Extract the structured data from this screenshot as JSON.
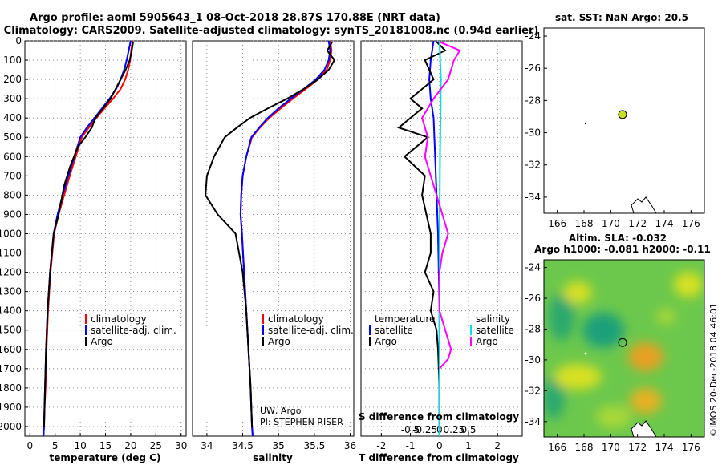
{
  "title_line1": "Argo profile: aoml 5905643_1 08-Oct-2018 28.87S 170.88E (NRT data)",
  "title_line2": "Climatology: CARS2009. Satellite-adjusted climatology: synTS_20181008.nc (0.94d earlier)",
  "sst_title": "sat. SST: NaN Argo: 20.5",
  "sla_title_1": "Altim. SLA: -0.032",
  "sla_title_2": "Argo h1000: -0.081 h2000: -0.11",
  "credit_1": "UW, Argo",
  "credit_2": "PI: STEPHEN RISER",
  "watermark": "©IMOS 20-Dec-2018 04:46:01",
  "colors": {
    "climatology": "#ff0000",
    "satellite": "#0000ff",
    "argo": "#000000",
    "sat_salinity": "#00e0e0",
    "argo_salinity": "#ff00ff",
    "argo_marker": "#c8e020"
  },
  "chart_data": [
    {
      "type": "line",
      "name": "temperature",
      "xlabel": "temperature (deg C)",
      "ylabel": "",
      "xlim": [
        -1,
        31
      ],
      "ylim": [
        2050,
        0
      ],
      "xticks": [
        "0",
        "5",
        "10",
        "15",
        "20",
        "25",
        "30"
      ],
      "yticks": [
        "0",
        "100",
        "200",
        "300",
        "400",
        "500",
        "600",
        "700",
        "800",
        "900",
        "1000",
        "1100",
        "1200",
        "1300",
        "1400",
        "1500",
        "1600",
        "1700",
        "1800",
        "1900",
        "2000"
      ],
      "legend": [
        "climatology",
        "satellite-adj. clim.",
        "Argo"
      ],
      "series": [
        {
          "name": "climatology",
          "color": "red",
          "x": [
            20.4,
            20.1,
            19.9,
            19.5,
            18.9,
            18.0,
            16.5,
            14.8,
            13.2,
            11.7,
            10.3,
            9.1,
            7.9,
            6.8,
            5.7,
            4.8,
            4.1,
            3.6,
            3.3,
            3.1,
            2.9,
            2.8,
            2.7
          ],
          "y": [
            0,
            50,
            100,
            150,
            200,
            250,
            300,
            350,
            400,
            450,
            500,
            600,
            700,
            800,
            900,
            1000,
            1200,
            1400,
            1600,
            1800,
            1900,
            2000,
            2050
          ]
        },
        {
          "name": "satellite-adj. clim.",
          "color": "blue",
          "x": [
            20.0,
            19.6,
            19.2,
            18.7,
            18.0,
            17.1,
            15.8,
            14.3,
            12.8,
            11.3,
            10.0,
            8.8,
            7.6,
            6.5,
            5.5,
            4.7,
            4.0,
            3.5,
            3.2,
            3.0,
            2.9,
            2.8,
            2.7
          ],
          "y": [
            0,
            50,
            100,
            150,
            200,
            250,
            300,
            350,
            400,
            450,
            500,
            600,
            700,
            800,
            900,
            1000,
            1200,
            1400,
            1600,
            1800,
            1900,
            2000,
            2050
          ]
        },
        {
          "name": "Argo",
          "color": "black",
          "x": [
            20.5,
            20.2,
            19.8,
            19.0,
            18.0,
            17.0,
            16.0,
            14.5,
            13.0,
            12.3,
            11.0,
            9.5,
            8.0,
            6.8,
            5.7,
            4.7,
            4.0,
            3.5,
            3.2,
            3.0,
            2.8
          ],
          "y": [
            5,
            50,
            100,
            150,
            200,
            250,
            300,
            350,
            400,
            450,
            500,
            550,
            650,
            750,
            900,
            1000,
            1200,
            1400,
            1600,
            1800,
            2000
          ]
        }
      ]
    },
    {
      "type": "line",
      "name": "salinity",
      "xlabel": "salinity",
      "ylabel": "",
      "xlim": [
        33.8,
        36.05
      ],
      "ylim": [
        2050,
        0
      ],
      "xticks": [
        "34",
        "34.5",
        "35",
        "35.5",
        "36"
      ],
      "legend": [
        "climatology",
        "satellite-adj. clim.",
        "Argo"
      ],
      "series": [
        {
          "name": "climatology",
          "color": "red",
          "x": [
            35.72,
            35.74,
            35.72,
            35.67,
            35.55,
            35.38,
            35.2,
            35.03,
            34.87,
            34.74,
            34.63,
            34.55,
            34.5,
            34.48,
            34.47,
            34.49,
            34.52,
            34.55,
            34.58,
            34.61,
            34.63,
            34.64
          ],
          "y": [
            0,
            50,
            100,
            150,
            200,
            250,
            300,
            350,
            400,
            450,
            500,
            600,
            700,
            800,
            900,
            1000,
            1200,
            1400,
            1600,
            1800,
            2000,
            2050
          ]
        },
        {
          "name": "satellite-adj. clim.",
          "color": "blue",
          "x": [
            35.7,
            35.72,
            35.7,
            35.64,
            35.52,
            35.35,
            35.17,
            35.0,
            34.85,
            34.73,
            34.62,
            34.55,
            34.5,
            34.48,
            34.47,
            34.49,
            34.52,
            34.55,
            34.58,
            34.61,
            34.63,
            34.64
          ],
          "y": [
            0,
            50,
            100,
            150,
            200,
            250,
            300,
            350,
            400,
            450,
            500,
            600,
            700,
            800,
            900,
            1000,
            1200,
            1400,
            1600,
            1800,
            2000,
            2050
          ]
        },
        {
          "name": "Argo",
          "color": "black",
          "x": [
            35.75,
            35.68,
            35.78,
            35.7,
            35.55,
            35.35,
            35.12,
            34.85,
            34.6,
            34.42,
            34.25,
            34.1,
            34.0,
            33.98,
            34.15,
            34.4,
            34.5,
            34.55,
            34.58,
            34.61,
            34.63
          ],
          "y": [
            5,
            50,
            100,
            150,
            200,
            250,
            300,
            350,
            400,
            450,
            500,
            600,
            700,
            800,
            900,
            1000,
            1200,
            1400,
            1600,
            1800,
            2000
          ]
        }
      ],
      "credit": [
        "UW, Argo",
        "PI: STEPHEN RISER"
      ]
    },
    {
      "type": "line",
      "name": "differences",
      "xlabel": "T difference from climatology",
      "top_label": "S difference from climatology",
      "xlim": [
        -2.7,
        2.85
      ],
      "ylim": [
        2050,
        0
      ],
      "xticks": [
        "-2",
        "-1",
        "0",
        "1",
        "2"
      ],
      "top_xticks": [
        "-0.5",
        "-0.25",
        "0",
        "0.25",
        "0.5"
      ],
      "legend_temperature": [
        "temperature",
        "satellite",
        "Argo"
      ],
      "legend_salinity": [
        "salinity",
        "satellite",
        "Argo"
      ],
      "series": [
        {
          "name": "T satellite",
          "color": "blue",
          "x": [
            -0.2,
            -0.3,
            -0.35,
            -0.3,
            -0.2,
            -0.15,
            -0.1,
            -0.05,
            0,
            0
          ],
          "y": [
            0,
            100,
            200,
            300,
            400,
            600,
            800,
            1000,
            1400,
            2050
          ]
        },
        {
          "name": "T Argo",
          "color": "black",
          "x": [
            -0.1,
            0.2,
            -0.5,
            -0.2,
            -1.0,
            -0.6,
            -1.4,
            -0.4,
            -1.2,
            -0.5,
            -0.6,
            -0.45,
            -0.3,
            -0.3,
            -0.5,
            -0.2,
            -0.3,
            -0.1,
            -0.05,
            0,
            0
          ],
          "y": [
            5,
            50,
            100,
            200,
            300,
            350,
            450,
            500,
            600,
            700,
            800,
            900,
            1000,
            1100,
            1200,
            1300,
            1400,
            1500,
            1600,
            1800,
            2000
          ]
        },
        {
          "name": "S satellite",
          "color": "cyan",
          "x": [
            0,
            0.05,
            0.02,
            0,
            0,
            0
          ],
          "y": [
            0,
            200,
            600,
            1000,
            1400,
            2050
          ]
        },
        {
          "name": "S Argo",
          "color": "magenta",
          "x": [
            0,
            0.7,
            0.5,
            0.3,
            -0.2,
            -0.6,
            -0.4,
            -0.5,
            -0.3,
            -0.1,
            0.3,
            0.1,
            0,
            0,
            0,
            0.4,
            0.3,
            0
          ],
          "y": [
            5,
            50,
            100,
            200,
            300,
            400,
            500,
            600,
            700,
            800,
            1000,
            1100,
            1200,
            1300,
            1400,
            1600,
            1650,
            1700
          ]
        }
      ]
    },
    {
      "type": "scatter",
      "name": "sst_map",
      "title": "sat. SST: NaN Argo: 20.5",
      "xlim": [
        165,
        177
      ],
      "ylim": [
        -35,
        -23.5
      ],
      "xticks": [
        "166",
        "168",
        "170",
        "172",
        "174",
        "176"
      ],
      "yticks": [
        "-24",
        "-26",
        "-28",
        "-30",
        "-32",
        "-34"
      ],
      "points": [
        {
          "lon": 170.88,
          "lat": -28.87,
          "label": "Argo"
        }
      ]
    },
    {
      "type": "heatmap",
      "name": "sla_map",
      "title": "Altim. SLA: -0.032",
      "subtitle": "Argo h1000: -0.081 h2000: -0.11",
      "xlim": [
        165,
        177
      ],
      "ylim": [
        -35,
        -23.5
      ],
      "xticks": [
        "166",
        "168",
        "170",
        "172",
        "174",
        "176"
      ],
      "yticks": [
        "-24",
        "-26",
        "-28",
        "-30",
        "-32",
        "-34"
      ],
      "points": [
        {
          "lon": 170.88,
          "lat": -28.87,
          "label": "Argo"
        }
      ]
    }
  ]
}
